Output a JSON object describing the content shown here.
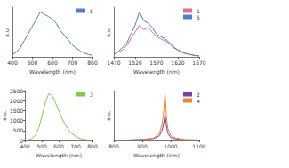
{
  "chart_data": [
    {
      "type": "line",
      "x_label": "Wavelength (nm)",
      "y_label": "a.u.",
      "x": [
        400,
        420,
        440,
        460,
        480,
        500,
        520,
        540,
        560,
        580,
        600,
        620,
        640,
        660,
        680,
        700,
        720,
        740,
        760,
        780,
        800
      ],
      "series": [
        {
          "name": "5",
          "color": "#4f7fc4",
          "values": [
            0.05,
            0.1,
            0.2,
            0.35,
            0.5,
            0.65,
            0.8,
            0.95,
            0.9,
            0.85,
            0.8,
            0.7,
            0.55,
            0.45,
            0.35,
            0.25,
            0.18,
            0.12,
            0.08,
            0.05,
            0.03
          ]
        }
      ],
      "xlim": [
        400,
        800
      ],
      "xticks": [
        400,
        500,
        600,
        700,
        800
      ],
      "ylim": [
        0,
        1.05
      ],
      "tick_labels": "x",
      "legend": "upper right",
      "grid": false
    },
    {
      "type": "line",
      "x_label": "Wavelength (nm)",
      "y_label": "a.u.",
      "x": [
        1470,
        1480,
        1490,
        1500,
        1510,
        1520,
        1530,
        1540,
        1550,
        1560,
        1570,
        1580,
        1590,
        1600,
        1610,
        1620,
        1630,
        1640,
        1650,
        1660,
        1670
      ],
      "series": [
        {
          "name": "1",
          "color": "#e3689f",
          "values": [
            0.05,
            0.1,
            0.15,
            0.25,
            0.4,
            0.55,
            0.7,
            0.6,
            0.65,
            0.55,
            0.45,
            0.4,
            0.35,
            0.3,
            0.2,
            0.15,
            0.1,
            0.07,
            0.05,
            0.03,
            0.02
          ]
        },
        {
          "name": "5",
          "color": "#4f7fc4",
          "values": [
            0.05,
            0.12,
            0.2,
            0.3,
            0.5,
            0.7,
            1.0,
            0.8,
            0.75,
            0.65,
            0.5,
            0.45,
            0.4,
            0.32,
            0.22,
            0.15,
            0.1,
            0.07,
            0.05,
            0.03,
            0.02
          ]
        }
      ],
      "xlim": [
        1470,
        1670
      ],
      "xticks": [
        1470,
        1520,
        1570,
        1620,
        1670
      ],
      "ylim": [
        0,
        1.1
      ],
      "tick_labels": "x",
      "legend": "upper right",
      "grid": false
    },
    {
      "type": "line",
      "x_label": "Wavelength (nm)",
      "y_label": "a.u.",
      "x": [
        400,
        420,
        440,
        460,
        480,
        500,
        520,
        540,
        560,
        580,
        600,
        620,
        640,
        660,
        680,
        700,
        720,
        740,
        760,
        780,
        800
      ],
      "series": [
        {
          "name": "3",
          "color": "#7dcc44",
          "values": [
            0,
            30,
            100,
            250,
            600,
            1200,
            1900,
            2350,
            2250,
            1900,
            1500,
            1100,
            780,
            520,
            330,
            200,
            120,
            70,
            40,
            20,
            10
          ]
        }
      ],
      "xlim": [
        400,
        800
      ],
      "xticks": [
        400,
        500,
        600,
        700,
        800
      ],
      "ylim": [
        0,
        2500
      ],
      "yticks": [
        0,
        500,
        1000,
        1500,
        2000,
        2500
      ],
      "legend": "upper right",
      "grid": false
    },
    {
      "type": "line",
      "x_label": "Wavelength (nm)",
      "y_label": "a.u.",
      "x": [
        800,
        850,
        900,
        940,
        960,
        970,
        975,
        980,
        985,
        990,
        1000,
        1020,
        1050,
        1100
      ],
      "series": [
        {
          "name": "2",
          "color": "#7b3fa0",
          "values": [
            0,
            0.01,
            0.02,
            0.04,
            0.1,
            0.22,
            0.35,
            0.55,
            0.3,
            0.15,
            0.06,
            0.03,
            0.01,
            0.01
          ]
        },
        {
          "name": "4",
          "color": "#f0862a",
          "values": [
            0,
            0.01,
            0.02,
            0.05,
            0.15,
            0.35,
            0.6,
            1.0,
            0.5,
            0.25,
            0.1,
            0.05,
            0.02,
            0.01
          ]
        }
      ],
      "xlim": [
        800,
        1100
      ],
      "xticks": [
        800,
        900,
        1000,
        1100
      ],
      "ylim": [
        0,
        1.05
      ],
      "tick_labels": "x",
      "legend": "upper right",
      "grid": false
    }
  ]
}
